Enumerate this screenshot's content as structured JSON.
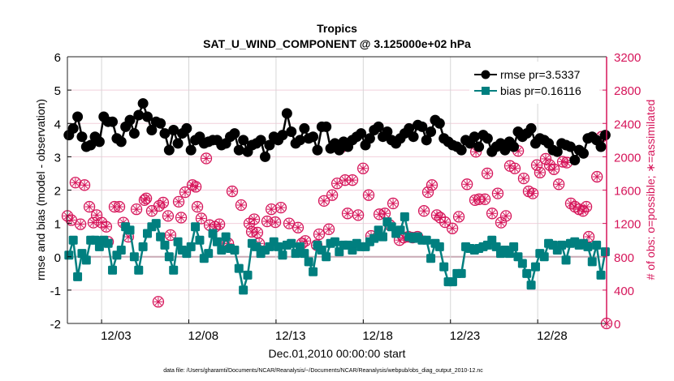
{
  "chart_data": {
    "type": "line",
    "title": "Tropics",
    "subtitle": "SAT_U_WIND_COMPONENT @ 3.125000e+02 hPa",
    "xlabel": "Dec.01,2010 00:00:00 start",
    "ylabel": "rmse and bias (model - observation)",
    "y2label": "# of obs: o=possible; ∗=assimilated",
    "footnote": "data file: /Users/gharamti/Documents/NCAR/Reanalysis/~/Documents/NCAR/Reanalysis/webpub/obs_diag_output_2010-12.nc",
    "xlim": [
      1.04,
      31.95
    ],
    "ylim": [
      -2,
      6
    ],
    "y2lim": [
      0,
      3200
    ],
    "grid": true,
    "legend_position": "top-right",
    "x_ticks": [
      {
        "value": 3,
        "label": "12/03"
      },
      {
        "value": 8,
        "label": "12/08"
      },
      {
        "value": 13,
        "label": "12/13"
      },
      {
        "value": 18,
        "label": "12/18"
      },
      {
        "value": 23,
        "label": "12/23"
      },
      {
        "value": 28,
        "label": "12/28"
      }
    ],
    "y_ticks": [
      "-2",
      "-1",
      "0",
      "1",
      "2",
      "3",
      "4",
      "5",
      "6"
    ],
    "y2_ticks": [
      "0",
      "400",
      "800",
      "1200",
      "1600",
      "2000",
      "2400",
      "2800",
      "3200"
    ],
    "x_start": 1.125,
    "x_step": 0.25,
    "series": [
      {
        "name": "rmse pr=3.5337",
        "color": "#000000",
        "marker": "circle",
        "values": [
          3.65,
          3.85,
          4.2,
          3.6,
          3.3,
          3.35,
          3.6,
          3.45,
          4.2,
          4.05,
          4.05,
          3.55,
          3.45,
          3.9,
          4.1,
          3.7,
          4.25,
          4.6,
          4.2,
          3.8,
          4.05,
          4.0,
          3.7,
          3.2,
          3.8,
          3.4,
          3.7,
          3.85,
          3.2,
          3.5,
          3.6,
          3.4,
          3.45,
          3.5,
          3.5,
          3.35,
          3.4,
          3.6,
          3.7,
          3.2,
          3.5,
          3.15,
          3.35,
          3.4,
          3.5,
          3.0,
          3.35,
          3.6,
          3.5,
          3.65,
          4.3,
          3.75,
          3.4,
          3.5,
          3.85,
          3.55,
          3.6,
          3.2,
          3.9,
          3.9,
          3.25,
          3.4,
          3.2,
          3.45,
          3.3,
          3.5,
          3.6,
          3.7,
          3.35,
          3.55,
          3.8,
          3.9,
          3.6,
          3.75,
          3.5,
          3.4,
          3.55,
          3.7,
          3.85,
          3.6,
          3.95,
          3.9,
          3.5,
          3.75,
          4.1,
          4.0,
          3.55,
          3.45,
          3.35,
          3.3,
          3.2,
          3.5,
          3.4,
          3.6,
          3.3,
          3.65,
          3.55,
          3.15,
          3.3,
          3.4,
          3.2,
          3.45,
          3.3,
          3.75,
          3.6,
          3.7,
          3.85,
          3.4,
          3.55,
          3.5,
          3.4,
          3.2,
          3.15,
          3.4,
          3.35,
          3.3,
          2.9,
          3.2,
          3.1,
          3.55,
          3.6,
          3.5,
          3.3,
          3.65
        ]
      },
      {
        "name": "bias pr=0.16116",
        "color": "#007f7f",
        "marker": "square",
        "values": [
          0.05,
          0.5,
          -0.6,
          0.1,
          -0.1,
          0.5,
          0.5,
          0.3,
          0.5,
          0.4,
          -0.4,
          0.05,
          0.2,
          0.9,
          0.8,
          0.0,
          -0.4,
          0.3,
          0.7,
          0.9,
          1.0,
          0.6,
          0.35,
          0.0,
          -0.4,
          0.45,
          0.2,
          0.1,
          0.3,
          0.9,
          0.5,
          -0.05,
          0.1,
          0.7,
          0.45,
          0.2,
          0.6,
          0.25,
          0.2,
          -0.35,
          -1.0,
          -0.55,
          0.4,
          0.3,
          0.1,
          0.2,
          0.3,
          0.45,
          0.3,
          0.05,
          0.35,
          0.4,
          0.1,
          0.3,
          0.1,
          -0.15,
          -0.45,
          0.35,
          0.2,
          0.0,
          0.4,
          0.45,
          0.15,
          0.35,
          0.35,
          0.2,
          0.4,
          0.3,
          0.3,
          0.45,
          0.55,
          0.8,
          0.6,
          1.05,
          0.9,
          0.7,
          0.8,
          1.2,
          0.6,
          0.55,
          0.6,
          0.5,
          0.5,
          -0.05,
          0.4,
          0.3,
          -0.3,
          -0.75,
          -0.75,
          -0.5,
          -0.5,
          0.3,
          0.25,
          0.2,
          0.25,
          0.3,
          0.35,
          0.5,
          0.3,
          0.1,
          0.2,
          0.1,
          0.3,
          0.0,
          -0.2,
          -0.5,
          -0.85,
          -0.3,
          0.1,
          0.0,
          0.4,
          0.35,
          0.2,
          0.35,
          -0.1,
          0.4,
          0.45,
          0.35,
          0.4,
          0.3,
          -0.15,
          0.35,
          -0.55,
          0.15
        ]
      }
    ],
    "obs_counts": {
      "name": "# of obs",
      "color": "#d6155a",
      "axis": "right",
      "points": [
        [
          1.04,
          1290
        ],
        [
          1.27,
          1240
        ],
        [
          1.5,
          1690
        ],
        [
          1.79,
          1190
        ],
        [
          2.02,
          1660
        ],
        [
          2.3,
          1400
        ],
        [
          2.53,
          1210
        ],
        [
          2.72,
          1300
        ],
        [
          3.0,
          1210
        ],
        [
          3.27,
          1160
        ],
        [
          3.37,
          980
        ],
        [
          3.74,
          1400
        ],
        [
          4.02,
          1400
        ],
        [
          4.25,
          1210
        ],
        [
          4.53,
          1040
        ],
        [
          5.0,
          1370
        ],
        [
          5.46,
          1480
        ],
        [
          5.56,
          1500
        ],
        [
          5.88,
          1350
        ],
        [
          6.25,
          260
        ],
        [
          6.3,
          1410
        ],
        [
          6.53,
          1450
        ],
        [
          6.81,
          1290
        ],
        [
          6.95,
          1060
        ],
        [
          7.42,
          1460
        ],
        [
          7.56,
          1270
        ],
        [
          7.79,
          1575
        ],
        [
          8.21,
          1660
        ],
        [
          8.4,
          1640
        ],
        [
          8.49,
          1400
        ],
        [
          8.72,
          1260
        ],
        [
          9.0,
          1980
        ],
        [
          9.19,
          1180
        ],
        [
          9.51,
          1160
        ],
        [
          9.75,
          1190
        ],
        [
          9.98,
          960
        ],
        [
          10.26,
          960
        ],
        [
          10.49,
          1585
        ],
        [
          11.0,
          1420
        ],
        [
          11.47,
          1200
        ],
        [
          11.61,
          1100
        ],
        [
          11.75,
          1250
        ],
        [
          11.93,
          1090
        ],
        [
          12.03,
          960
        ],
        [
          12.49,
          1225
        ],
        [
          12.73,
          1370
        ],
        [
          12.96,
          1215
        ],
        [
          13.28,
          1390
        ],
        [
          13.75,
          1200
        ],
        [
          14.26,
          1150
        ],
        [
          14.49,
          960
        ],
        [
          14.68,
          990
        ],
        [
          15.33,
          940
        ],
        [
          15.47,
          1070
        ],
        [
          15.75,
          1470
        ],
        [
          16.03,
          1130
        ],
        [
          16.22,
          1540
        ],
        [
          16.5,
          1680
        ],
        [
          16.73,
          2110
        ],
        [
          16.96,
          1720
        ],
        [
          17.1,
          1320
        ],
        [
          17.38,
          1720
        ],
        [
          17.71,
          1300
        ],
        [
          17.99,
          1860
        ],
        [
          18.31,
          1540
        ],
        [
          18.45,
          1050
        ],
        [
          18.92,
          1310
        ],
        [
          19.24,
          1320
        ],
        [
          19.52,
          1180
        ],
        [
          19.71,
          1440
        ],
        [
          20.08,
          1000
        ],
        [
          20.31,
          1030
        ],
        [
          20.59,
          1040
        ],
        [
          20.83,
          1030
        ],
        [
          21.11,
          1040
        ],
        [
          21.48,
          1350
        ],
        [
          21.71,
          1575
        ],
        [
          21.94,
          1660
        ],
        [
          22.22,
          1300
        ],
        [
          22.41,
          1270
        ],
        [
          22.69,
          1215
        ],
        [
          23.11,
          1140
        ],
        [
          23.48,
          1280
        ],
        [
          23.95,
          1670
        ],
        [
          24.41,
          1480
        ],
        [
          24.46,
          2060
        ],
        [
          24.64,
          1490
        ],
        [
          24.97,
          1490
        ],
        [
          25.11,
          1800
        ],
        [
          25.39,
          1320
        ],
        [
          25.71,
          1560
        ],
        [
          25.9,
          1210
        ],
        [
          26.18,
          1290
        ],
        [
          26.41,
          1890
        ],
        [
          26.69,
          1860
        ],
        [
          26.88,
          2070
        ],
        [
          27.2,
          1740
        ],
        [
          27.48,
          1585
        ],
        [
          27.72,
          1560
        ],
        [
          27.95,
          1900
        ],
        [
          28.13,
          1810
        ],
        [
          28.46,
          1975
        ],
        [
          28.69,
          1900
        ],
        [
          28.93,
          1850
        ],
        [
          29.21,
          1670
        ],
        [
          29.44,
          1940
        ],
        [
          29.67,
          1930
        ],
        [
          29.9,
          1440
        ],
        [
          30.14,
          1400
        ],
        [
          30.37,
          1370
        ],
        [
          30.6,
          1350
        ],
        [
          30.79,
          1400
        ],
        [
          30.93,
          1040
        ],
        [
          31.4,
          1760
        ],
        [
          31.67,
          2240
        ],
        [
          31.95,
          0
        ]
      ]
    }
  }
}
